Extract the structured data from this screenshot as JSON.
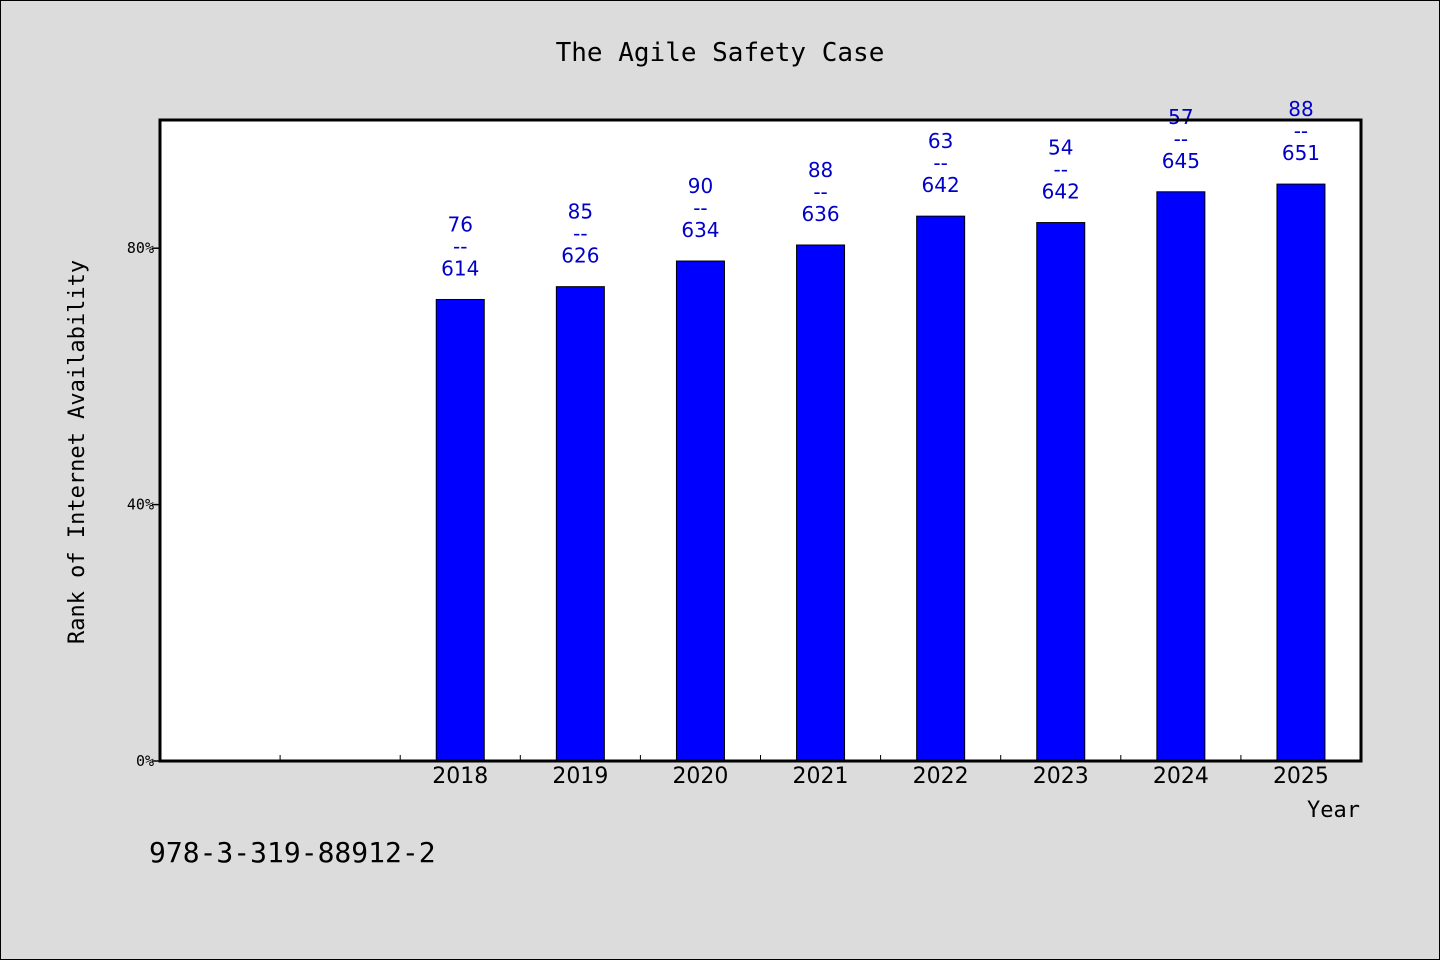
{
  "chart_data": {
    "type": "bar",
    "title": "The Agile Safety Case",
    "xlabel": "Year",
    "ylabel": "Rank of Internet Availability",
    "categories": [
      "",
      "",
      "2018",
      "2019",
      "2020",
      "2021",
      "2022",
      "2023",
      "2024",
      "2025"
    ],
    "values": [
      null,
      null,
      72,
      74,
      78,
      80.5,
      85,
      84,
      88.8,
      90
    ],
    "top_labels": [
      "",
      "",
      "76",
      "85",
      "90",
      "88",
      "63",
      "54",
      "57",
      "88"
    ],
    "bottom_labels": [
      "",
      "",
      "614",
      "626",
      "634",
      "636",
      "642",
      "642",
      "645",
      "651"
    ],
    "label_separator": "--",
    "ylim": [
      0,
      100
    ],
    "yticks": [
      0,
      40,
      80
    ],
    "ytick_labels": [
      "0%",
      "40%",
      "80%"
    ],
    "bar_color": "#0000ff",
    "label_color": "#0000c8",
    "grid": false,
    "legend": "none"
  },
  "footer_text": "978-3-319-88912-2"
}
